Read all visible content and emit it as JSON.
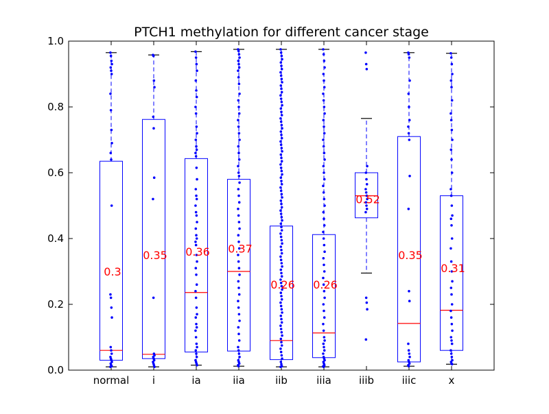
{
  "chart_data": {
    "type": "box",
    "title": "PTCH1 methylation for different cancer stage",
    "xlabel": "",
    "ylabel": "",
    "ylim": [
      0.0,
      1.0
    ],
    "yticks": [
      0.0,
      0.2,
      0.4,
      0.6,
      0.8,
      1.0
    ],
    "ytick_labels": [
      "0.0",
      "0.2",
      "0.4",
      "0.6",
      "0.8",
      "1.0"
    ],
    "grid": false,
    "legend": null,
    "colors": {
      "box": "#0000ff",
      "median": "#ff0000",
      "annotation": "#ff0000",
      "points": "#0000ff"
    },
    "categories": [
      "normal",
      "i",
      "ia",
      "iia",
      "iib",
      "iiia",
      "iiib",
      "iiic",
      "x"
    ],
    "boxes": [
      {
        "label": "normal",
        "whisker_low": 0.01,
        "q1": 0.03,
        "median": 0.06,
        "q3": 0.635,
        "whisker_high": 0.965,
        "mean_label": "0.3",
        "mean_value": 0.3,
        "points": [
          0.965,
          0.955,
          0.94,
          0.93,
          0.92,
          0.91,
          0.9,
          0.84,
          0.79,
          0.73,
          0.69,
          0.66,
          0.64,
          0.5,
          0.23,
          0.22,
          0.19,
          0.16,
          0.07,
          0.06,
          0.05,
          0.04,
          0.035,
          0.03,
          0.025,
          0.02,
          0.015,
          0.012,
          0.01
        ]
      },
      {
        "label": "i",
        "whisker_low": 0.01,
        "q1": 0.035,
        "median": 0.048,
        "q3": 0.762,
        "whisker_high": 0.958,
        "mean_label": "0.35",
        "mean_value": 0.35,
        "points": [
          0.958,
          0.955,
          0.88,
          0.86,
          0.77,
          0.735,
          0.585,
          0.52,
          0.22,
          0.05,
          0.045,
          0.04,
          0.035,
          0.03,
          0.025,
          0.02,
          0.015,
          0.01
        ]
      },
      {
        "label": "ia",
        "whisker_low": 0.015,
        "q1": 0.055,
        "median": 0.236,
        "q3": 0.643,
        "whisker_high": 0.968,
        "mean_label": "0.36",
        "mean_value": 0.36,
        "points": [
          0.968,
          0.95,
          0.93,
          0.91,
          0.88,
          0.85,
          0.83,
          0.8,
          0.78,
          0.74,
          0.72,
          0.7,
          0.68,
          0.67,
          0.66,
          0.65,
          0.615,
          0.58,
          0.55,
          0.53,
          0.52,
          0.5,
          0.48,
          0.47,
          0.45,
          0.43,
          0.41,
          0.4,
          0.39,
          0.38,
          0.35,
          0.33,
          0.31,
          0.29,
          0.26,
          0.24,
          0.22,
          0.19,
          0.17,
          0.16,
          0.14,
          0.13,
          0.12,
          0.1,
          0.08,
          0.07,
          0.06,
          0.05,
          0.04,
          0.03,
          0.025,
          0.02,
          0.015
        ]
      },
      {
        "label": "iia",
        "whisker_low": 0.012,
        "q1": 0.058,
        "median": 0.3,
        "q3": 0.58,
        "whisker_high": 0.975,
        "mean_label": "0.37",
        "mean_value": 0.37,
        "points": [
          0.975,
          0.97,
          0.96,
          0.95,
          0.94,
          0.93,
          0.92,
          0.91,
          0.89,
          0.87,
          0.84,
          0.82,
          0.8,
          0.78,
          0.76,
          0.74,
          0.72,
          0.7,
          0.68,
          0.66,
          0.64,
          0.62,
          0.6,
          0.59,
          0.57,
          0.55,
          0.53,
          0.51,
          0.49,
          0.47,
          0.45,
          0.43,
          0.41,
          0.39,
          0.37,
          0.35,
          0.33,
          0.31,
          0.29,
          0.27,
          0.25,
          0.23,
          0.21,
          0.19,
          0.17,
          0.15,
          0.13,
          0.11,
          0.09,
          0.07,
          0.06,
          0.05,
          0.04,
          0.03,
          0.025,
          0.02,
          0.015,
          0.012
        ]
      },
      {
        "label": "iib",
        "whisker_low": 0.01,
        "q1": 0.032,
        "median": 0.09,
        "q3": 0.438,
        "whisker_high": 0.975,
        "mean_label": "0.26",
        "mean_value": 0.26,
        "points": [
          0.975,
          0.965,
          0.955,
          0.945,
          0.935,
          0.925,
          0.915,
          0.905,
          0.895,
          0.885,
          0.875,
          0.865,
          0.855,
          0.845,
          0.835,
          0.825,
          0.815,
          0.805,
          0.795,
          0.785,
          0.775,
          0.765,
          0.755,
          0.745,
          0.735,
          0.725,
          0.715,
          0.705,
          0.695,
          0.685,
          0.675,
          0.665,
          0.655,
          0.645,
          0.635,
          0.625,
          0.615,
          0.605,
          0.595,
          0.585,
          0.575,
          0.565,
          0.555,
          0.545,
          0.535,
          0.525,
          0.515,
          0.505,
          0.495,
          0.485,
          0.475,
          0.465,
          0.455,
          0.445,
          0.435,
          0.425,
          0.415,
          0.405,
          0.395,
          0.385,
          0.375,
          0.365,
          0.355,
          0.345,
          0.335,
          0.325,
          0.315,
          0.305,
          0.295,
          0.285,
          0.275,
          0.265,
          0.255,
          0.245,
          0.235,
          0.225,
          0.215,
          0.205,
          0.195,
          0.185,
          0.175,
          0.165,
          0.155,
          0.145,
          0.135,
          0.125,
          0.115,
          0.105,
          0.095,
          0.085,
          0.075,
          0.065,
          0.055,
          0.045,
          0.035,
          0.025,
          0.018,
          0.012,
          0.01
        ]
      },
      {
        "label": "iiia",
        "whisker_low": 0.01,
        "q1": 0.038,
        "median": 0.113,
        "q3": 0.412,
        "whisker_high": 0.975,
        "mean_label": "0.26",
        "mean_value": 0.26,
        "points": [
          0.975,
          0.96,
          0.94,
          0.92,
          0.9,
          0.88,
          0.86,
          0.84,
          0.82,
          0.8,
          0.78,
          0.76,
          0.74,
          0.72,
          0.7,
          0.68,
          0.66,
          0.64,
          0.62,
          0.6,
          0.58,
          0.56,
          0.54,
          0.52,
          0.5,
          0.48,
          0.46,
          0.44,
          0.42,
          0.4,
          0.38,
          0.36,
          0.34,
          0.32,
          0.3,
          0.28,
          0.26,
          0.24,
          0.22,
          0.2,
          0.18,
          0.16,
          0.14,
          0.12,
          0.1,
          0.09,
          0.08,
          0.07,
          0.06,
          0.05,
          0.04,
          0.035,
          0.03,
          0.025,
          0.02,
          0.015,
          0.012,
          0.01
        ]
      },
      {
        "label": "iiib",
        "whisker_low": 0.295,
        "q1": 0.463,
        "median": 0.53,
        "q3": 0.6,
        "whisker_high": 0.765,
        "mean_label": "0.52",
        "mean_value": 0.52,
        "points": [
          0.965,
          0.93,
          0.915,
          0.62,
          0.6,
          0.58,
          0.565,
          0.55,
          0.54,
          0.53,
          0.52,
          0.51,
          0.5,
          0.49,
          0.48,
          0.22,
          0.205,
          0.185,
          0.093
        ]
      },
      {
        "label": "iiic",
        "whisker_low": 0.012,
        "q1": 0.025,
        "median": 0.142,
        "q3": 0.71,
        "whisker_high": 0.965,
        "mean_label": "0.35",
        "mean_value": 0.35,
        "points": [
          0.965,
          0.96,
          0.95,
          0.88,
          0.84,
          0.8,
          0.76,
          0.74,
          0.72,
          0.7,
          0.59,
          0.49,
          0.24,
          0.21,
          0.08,
          0.06,
          0.05,
          0.04,
          0.03,
          0.025,
          0.02,
          0.015,
          0.012
        ]
      },
      {
        "label": "x",
        "whisker_low": 0.018,
        "q1": 0.06,
        "median": 0.182,
        "q3": 0.53,
        "whisker_high": 0.963,
        "mean_label": "0.31",
        "mean_value": 0.31,
        "points": [
          0.963,
          0.95,
          0.93,
          0.9,
          0.88,
          0.86,
          0.82,
          0.78,
          0.76,
          0.73,
          0.7,
          0.67,
          0.64,
          0.6,
          0.55,
          0.53,
          0.5,
          0.47,
          0.46,
          0.44,
          0.4,
          0.37,
          0.33,
          0.3,
          0.27,
          0.25,
          0.23,
          0.2,
          0.18,
          0.16,
          0.14,
          0.12,
          0.1,
          0.09,
          0.08,
          0.06,
          0.05,
          0.04,
          0.03,
          0.025,
          0.02,
          0.018
        ]
      }
    ]
  }
}
